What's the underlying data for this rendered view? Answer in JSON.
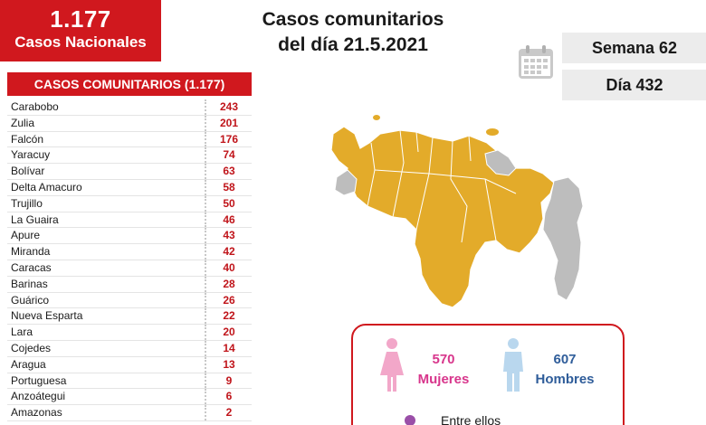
{
  "national": {
    "count": "1.177",
    "label": "Casos Nacionales"
  },
  "title": {
    "line1": "Casos comunitarios",
    "line2": "del día 21.5.2021"
  },
  "week_label": "Semana 62",
  "day_label": "Día 432",
  "table": {
    "header": "CASOS COMUNITARIOS (1.177)",
    "rows": [
      {
        "name": "Carabobo",
        "value": "243"
      },
      {
        "name": "Zulia",
        "value": "201"
      },
      {
        "name": "Falcón",
        "value": "176"
      },
      {
        "name": "Yaracuy",
        "value": "74"
      },
      {
        "name": "Bolívar",
        "value": "63"
      },
      {
        "name": "Delta Amacuro",
        "value": "58"
      },
      {
        "name": "Trujillo",
        "value": "50"
      },
      {
        "name": "La Guaira",
        "value": "46"
      },
      {
        "name": "Apure",
        "value": "43"
      },
      {
        "name": "Miranda",
        "value": "42"
      },
      {
        "name": "Caracas",
        "value": "40"
      },
      {
        "name": "Barinas",
        "value": "28"
      },
      {
        "name": "Guárico",
        "value": "26"
      },
      {
        "name": "Nueva Esparta",
        "value": "22"
      },
      {
        "name": "Lara",
        "value": "20"
      },
      {
        "name": "Cojedes",
        "value": "14"
      },
      {
        "name": "Aragua",
        "value": "13"
      },
      {
        "name": "Portuguesa",
        "value": "9"
      },
      {
        "name": "Anzoátegui",
        "value": "6"
      },
      {
        "name": "Amazonas",
        "value": "2"
      }
    ]
  },
  "gender": {
    "female_count": "570",
    "female_label": "Mujeres",
    "male_count": "607",
    "male_label": "Hombres",
    "between_label": "Entre ellos"
  },
  "colors": {
    "brand_red": "#d0181e",
    "map_affected": "#e3ab2a",
    "map_unaffected": "#bdbdbd",
    "female": "#d8368c",
    "male": "#2f5d9a"
  },
  "icons": {
    "calendar": "calendar-icon",
    "female": "female-figure-icon",
    "male": "male-figure-icon"
  }
}
